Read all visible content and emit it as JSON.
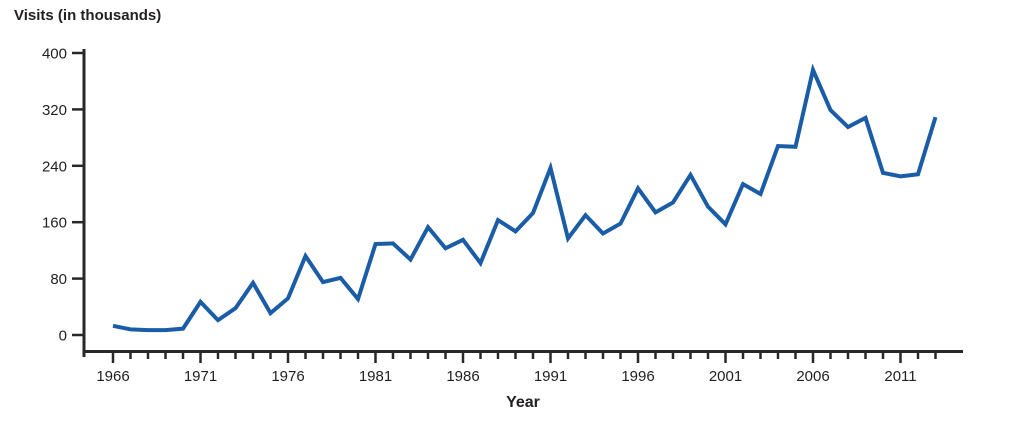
{
  "chart_data": {
    "type": "line",
    "title": "",
    "ylabel": "Visits (in thousands)",
    "xlabel": "Year",
    "x": [
      1966,
      1967,
      1968,
      1969,
      1970,
      1971,
      1972,
      1973,
      1974,
      1975,
      1976,
      1977,
      1978,
      1979,
      1980,
      1981,
      1982,
      1983,
      1984,
      1985,
      1986,
      1987,
      1988,
      1989,
      1990,
      1991,
      1992,
      1993,
      1994,
      1995,
      1996,
      1997,
      1998,
      1999,
      2000,
      2001,
      2002,
      2003,
      2004,
      2005,
      2006,
      2007,
      2008,
      2009,
      2010,
      2011,
      2012,
      2013
    ],
    "values": [
      13,
      8,
      7,
      7,
      9,
      47,
      21,
      38,
      74,
      31,
      52,
      112,
      75,
      81,
      51,
      129,
      130,
      107,
      153,
      123,
      135,
      102,
      163,
      147,
      173,
      237,
      137,
      170,
      144,
      158,
      208,
      174,
      188,
      227,
      182,
      157,
      214,
      200,
      268,
      267,
      376,
      319,
      295,
      308,
      230,
      225,
      228,
      309
    ],
    "ylim": [
      0,
      400
    ],
    "yticks": [
      0,
      80,
      160,
      240,
      320,
      400
    ],
    "xticks_labeled": [
      1966,
      1971,
      1976,
      1981,
      1986,
      1991,
      1996,
      2001,
      2006,
      2011
    ],
    "xticks_minor_every": 1,
    "grid": "off",
    "legend": "none",
    "line_color": "#1A5DA6",
    "axis_color": "#2A2729",
    "text_color": "#231F20"
  }
}
